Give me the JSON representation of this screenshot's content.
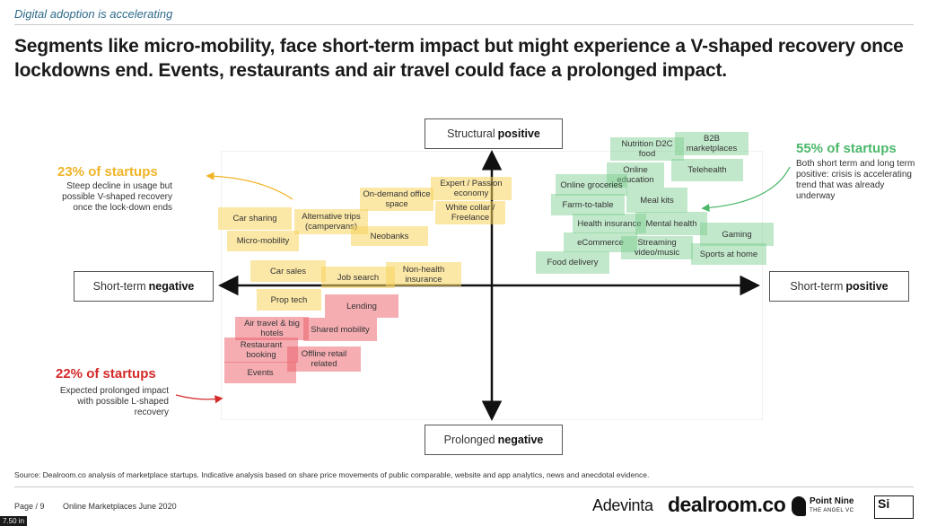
{
  "kicker": "Digital adoption is accelerating",
  "headline": "Segments like micro-mobility, face short-term impact but might experience a V-shaped recovery once lockdowns end. Events, restaurants and air travel could face a prolonged impact.",
  "axes": {
    "top": {
      "prefix": "Structural",
      "bold": "positive"
    },
    "bottom": {
      "prefix": "Prolonged",
      "bold": "negative"
    },
    "left": {
      "prefix": "Short-term",
      "bold": "negative"
    },
    "right": {
      "prefix": "Short-term",
      "bold": "positive"
    }
  },
  "callouts": {
    "yellow": {
      "headline": "23% of startups",
      "body": "Steep decline in usage but possible V-shaped recovery once the lock-down ends",
      "color": "#f0b428"
    },
    "green": {
      "headline": "55% of startups",
      "body": "Both short term and long term positive: crisis is accelerating trend that was already underway",
      "color": "#4cb86a"
    },
    "red": {
      "headline": "22% of startups",
      "body": "Expected prolonged impact with possible L-shaped recovery",
      "color": "#d42a2a"
    }
  },
  "segments": {
    "yellow": [
      "Expert / Passion economy",
      "On-demand office space",
      "White collar / Freelance",
      "Car sharing",
      "Alternative trips (campervans)",
      "Micro-mobility",
      "Neobanks",
      "Car sales",
      "Job search",
      "Non-health insurance",
      "Prop tech"
    ],
    "green": [
      "Nutrition D2C food",
      "B2B marketplaces",
      "Online education",
      "Telehealth",
      "Online groceries",
      "Farm-to-table",
      "Meal kits",
      "Health insurance",
      "Mental health",
      "Gaming",
      "eCommerce",
      "Streaming video/music",
      "Sports at home",
      "Food delivery"
    ],
    "red": [
      "Lending",
      "Air travel & big hotels",
      "Shared mobility",
      "Restaurant booking",
      "Offline retail related",
      "Events"
    ]
  },
  "source": "Source: Dealroom.co analysis of marketplace startups. Indicative analysis based on share price movements of public comparable, website and app analytics, news and anecdotal evidence.",
  "footer": {
    "page": "Page / 9",
    "doc": "Online Marketplaces June 2020",
    "logos": {
      "adevinta": "Adevinta",
      "dealroom": "dealroom.co",
      "pointnine": "Point Nine",
      "pointnine_tag": "THE ANGEL VC",
      "six": "Si"
    }
  },
  "size_tag": "7.50 in"
}
